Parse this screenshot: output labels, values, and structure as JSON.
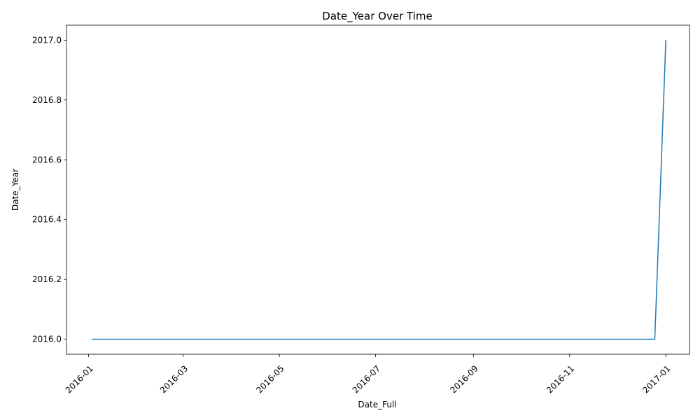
{
  "chart_data": {
    "type": "line",
    "title": "Date_Year Over Time",
    "xlabel": "Date_Full",
    "ylabel": "Date_Year",
    "x_ticks": [
      "2016-01",
      "2016-03",
      "2016-05",
      "2016-07",
      "2016-09",
      "2016-11",
      "2017-01"
    ],
    "y_ticks": [
      "2016.0",
      "2016.2",
      "2016.4",
      "2016.6",
      "2016.8",
      "2017.0"
    ],
    "xlim": [
      "2015-12-18",
      "2017-01-16"
    ],
    "ylim": [
      2015.95,
      2017.05
    ],
    "grid": false,
    "legend": "none",
    "series": [
      {
        "color": "#1f77b4",
        "x": [
          "2016-01-03",
          "2016-12-25",
          "2017-01-01"
        ],
        "y": [
          2016,
          2016,
          2017
        ]
      }
    ]
  }
}
